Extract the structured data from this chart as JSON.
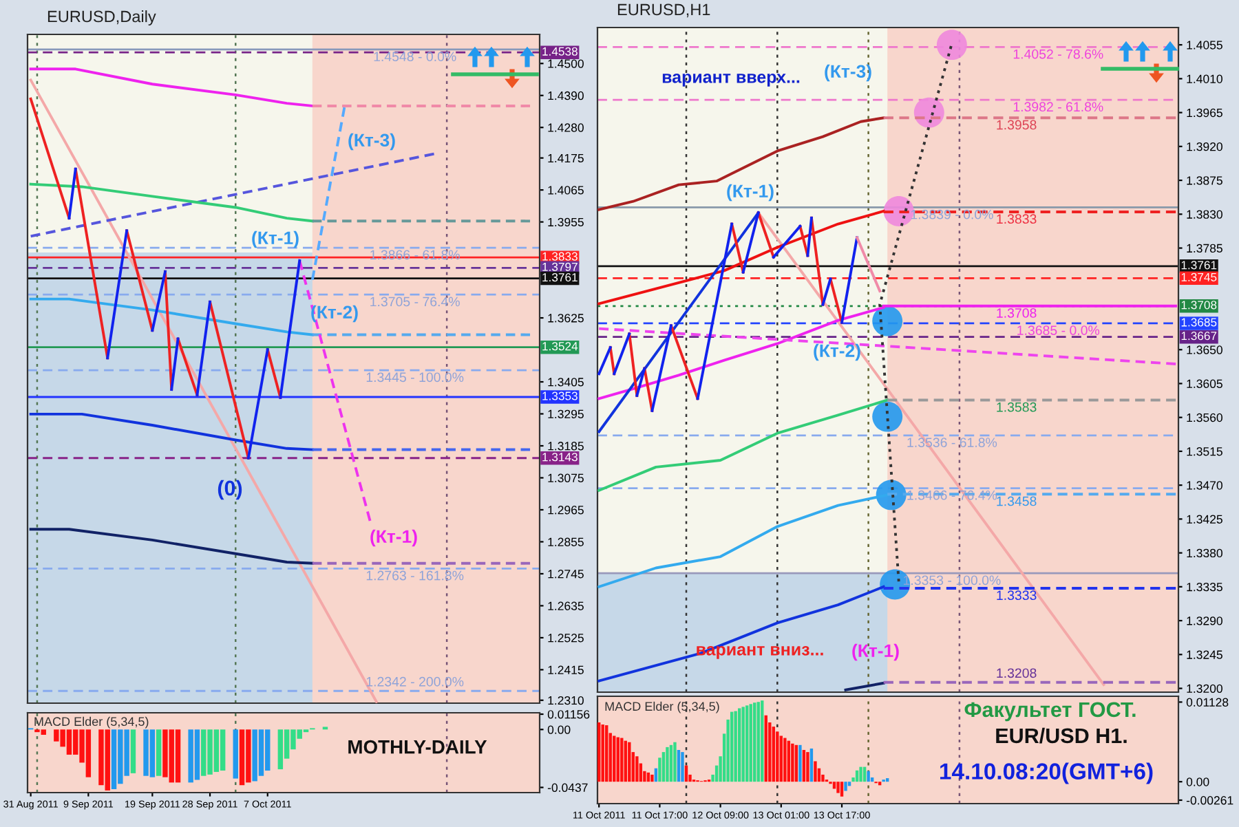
{
  "chart_data": [
    {
      "type": "line",
      "title": "EURUSD,Daily",
      "xlim": [
        "2011-08-30T12:00",
        "2011-11-18T12:00"
      ],
      "ylim": [
        1.23,
        1.46
      ],
      "tick_labels": "y",
      "yticks": [
        {
          "value": 1.45,
          "label": "1.4500"
        },
        {
          "value": 1.439,
          "label": "1.4390"
        },
        {
          "value": 1.428,
          "label": "1.4280"
        },
        1.4175,
        1.4065,
        1.3955,
        1.3625,
        1.3405,
        1.3295,
        1.3185,
        1.3075,
        1.2965,
        1.2855,
        1.2745,
        1.2635,
        1.2525,
        1.2415,
        {
          "value": 1.231,
          "label": "1.2310"
        }
      ],
      "bands": [
        {
          "axis": "y",
          "from": 1.23,
          "to": 1.385,
          "color": "#c6d8e8"
        },
        {
          "axis": "x",
          "from": "2011-10-14",
          "to": "2011-11-18T12:00",
          "color": "#f8d6cc"
        }
      ],
      "ref_lines": [
        {
          "axis": "x",
          "value": "2011-09-01",
          "color": "#557755",
          "line_style": "dotted"
        },
        {
          "axis": "x",
          "value": "2011-10-02",
          "color": "#557755",
          "line_style": "dotted"
        },
        {
          "axis": "x",
          "value": "2011-11-04",
          "color": "#775577",
          "line_style": "dotted"
        },
        {
          "axis": "y",
          "value": 1.4548,
          "color": "#8899bb",
          "line_style": "solid"
        },
        {
          "axis": "y",
          "value": 1.3866,
          "color": "#88aaee",
          "line_style": "dashed"
        },
        {
          "axis": "y",
          "value": 1.3705,
          "color": "#88aaee",
          "line_style": "dashed"
        },
        {
          "axis": "y",
          "value": 1.3445,
          "color": "#88aaee",
          "line_style": "dashed"
        },
        {
          "axis": "y",
          "value": 1.2763,
          "color": "#88aaee",
          "line_style": "dashed"
        },
        {
          "axis": "y",
          "value": 1.2342,
          "color": "#88aaee",
          "line_style": "dashed"
        },
        {
          "axis": "y",
          "value": 1.4538,
          "label": "1.4538",
          "color": "#772288",
          "line_style": "dashed"
        },
        {
          "axis": "y",
          "value": 1.3833,
          "label": "1.3833",
          "color": "#ff2222",
          "line_style": "solid"
        },
        {
          "axis": "y",
          "value": 1.3797,
          "label": "1.3797",
          "color": "#663399",
          "line_style": "dashed"
        },
        {
          "axis": "y",
          "value": 1.3761,
          "label": "1.3761",
          "color": "#111111",
          "line_style": "solid"
        },
        {
          "axis": "y",
          "value": 1.3524,
          "label": "1.3524",
          "color": "#229955",
          "line_style": "solid"
        },
        {
          "axis": "y",
          "value": 1.3353,
          "label": "1.3353",
          "color": "#2233ff",
          "line_style": "solid"
        },
        {
          "axis": "y",
          "value": 1.3143,
          "label": "1.3143",
          "color": "#882288",
          "line_style": "dashed"
        }
      ],
      "series": [
        {
          "type": "line",
          "color": "#f4a8a8",
          "x": [
            "2011-08-31",
            "2011-10-24"
          ],
          "values": [
            1.4443,
            1.2305
          ]
        },
        {
          "type": "line",
          "color": "#5555dd",
          "line_style": "dashed",
          "x": [
            "2011-08-31",
            "2011-11-02"
          ],
          "values": [
            1.3906,
            1.4189
          ]
        },
        {
          "type": "line",
          "color": "#ee22ee",
          "x": [
            "2011-08-31",
            "2011-09-07",
            "2011-09-19",
            "2011-10-02",
            "2011-10-10",
            "2011-10-14"
          ],
          "values": [
            1.4481,
            1.4481,
            1.4429,
            1.4392,
            1.4363,
            1.4354
          ]
        },
        {
          "type": "line",
          "color": "#f08aa8",
          "line_style": "dashed",
          "x": [
            "2011-10-14",
            "2011-11-17"
          ],
          "values": [
            1.4354,
            1.4354
          ]
        },
        {
          "type": "line",
          "color": "#33cc77",
          "x": [
            "2011-08-31",
            "2011-09-08",
            "2011-09-19",
            "2011-10-02",
            "2011-10-10",
            "2011-10-14"
          ],
          "values": [
            1.4085,
            1.4076,
            1.4043,
            1.4005,
            1.3968,
            1.3958
          ]
        },
        {
          "type": "line",
          "color": "#669999",
          "line_style": "dashed",
          "x": [
            "2011-10-14",
            "2011-11-17"
          ],
          "values": [
            1.3958,
            1.3958
          ]
        },
        {
          "type": "line",
          "color": "#33aaee",
          "x": [
            "2011-08-31",
            "2011-09-06",
            "2011-09-19",
            "2011-10-02",
            "2011-10-10",
            "2011-10-14"
          ],
          "values": [
            1.369,
            1.369,
            1.3652,
            1.3605,
            1.3577,
            1.3567
          ]
        },
        {
          "type": "line",
          "color": "#55aaee",
          "line_style": "dashed",
          "x": [
            "2011-10-14",
            "2011-11-17"
          ],
          "values": [
            1.3567,
            1.3567
          ]
        },
        {
          "type": "line",
          "color": "#1133dd",
          "x": [
            "2011-08-31",
            "2011-09-08",
            "2011-09-19",
            "2011-10-02",
            "2011-10-10",
            "2011-10-14"
          ],
          "values": [
            1.3294,
            1.3294,
            1.3256,
            1.3205,
            1.3176,
            1.3172
          ]
        },
        {
          "type": "line",
          "color": "#4466ee",
          "line_style": "dashed",
          "x": [
            "2011-10-14",
            "2011-11-17"
          ],
          "values": [
            1.3172,
            1.3172
          ]
        },
        {
          "type": "line",
          "color": "#112266",
          "x": [
            "2011-08-31",
            "2011-09-06",
            "2011-09-19",
            "2011-10-02",
            "2011-10-10",
            "2011-10-14"
          ],
          "values": [
            1.2898,
            1.2898,
            1.2861,
            1.2814,
            1.2785,
            1.2781
          ]
        },
        {
          "type": "line",
          "color": "#9966bb",
          "line_style": "dashed",
          "x": [
            "2011-10-14",
            "2011-11-17"
          ],
          "values": [
            1.2781,
            1.2781
          ]
        },
        {
          "type": "line",
          "color": "#55aaff",
          "line_style": "dashed",
          "x": [
            "2011-10-14",
            "2011-10-19"
          ],
          "values": [
            1.3756,
            1.4349
          ]
        },
        {
          "type": "line",
          "color": "#ee33ee",
          "line_style": "dashed",
          "x": [
            "2011-10-12",
            "2011-10-23"
          ],
          "values": [
            1.3822,
            1.2927
          ]
        },
        {
          "type": "line",
          "color": "#ee2222",
          "x": [
            "2011-08-31",
            "2011-09-06",
            null,
            "2011-09-07",
            "2011-09-12",
            null,
            "2011-09-15",
            "2011-09-19",
            null,
            "2011-09-21",
            "2011-09-22",
            null,
            "2011-09-23",
            "2011-09-26",
            null,
            "2011-09-28",
            "2011-10-04",
            null,
            "2011-10-07",
            "2011-10-09"
          ],
          "values": [
            1.4378,
            1.3968,
            null,
            1.4137,
            1.3487,
            null,
            1.3925,
            1.3582,
            null,
            1.3784,
            1.3379,
            null,
            1.3553,
            1.336,
            null,
            1.368,
            1.3143,
            null,
            1.3516,
            1.3351
          ]
        },
        {
          "type": "line",
          "color": "#1122ee",
          "x": [
            "2011-09-06",
            "2011-09-07",
            null,
            "2011-09-12",
            "2011-09-15",
            null,
            "2011-09-19",
            "2011-09-21",
            null,
            "2011-09-22",
            "2011-09-23",
            null,
            "2011-09-26",
            "2011-09-28",
            null,
            "2011-10-04",
            "2011-10-07",
            null,
            "2011-10-09",
            "2011-10-12"
          ],
          "values": [
            1.3968,
            1.4137,
            null,
            1.3487,
            1.3925,
            null,
            1.3582,
            1.3784,
            null,
            1.3379,
            1.3553,
            null,
            1.336,
            1.368,
            null,
            1.3143,
            1.3516,
            null,
            1.3351,
            1.3822
          ]
        }
      ],
      "annotations": [
        "(Кт-3)",
        "(Кт-1)",
        "(Кт-2)",
        "(0)",
        "(Кт-1)",
        {
          "text": "1.4548 - 0.0%",
          "x": "2011-10-30",
          "y": 1.4548
        },
        {
          "text": "1.3866 - 61.8%",
          "x": "2011-10-30",
          "y": 1.3866
        },
        {
          "text": "1.3705 - 76.4%",
          "x": "2011-10-30",
          "y": 1.3705
        },
        {
          "text": "1.3445 - 100.0%",
          "x": "2011-10-30",
          "y": 1.3445
        },
        {
          "text": "1.2763 - 161.8%",
          "x": "2011-10-30",
          "y": 1.2763
        },
        {
          "text": "1.2342 - 200.0%",
          "x": "2011-10-30",
          "y": 1.2342
        }
      ]
    },
    {
      "type": "bar",
      "title": "MACD Elder (5,34,5)",
      "xlim": [
        "2011-08-30T12:00",
        "2011-11-18T12:00"
      ],
      "ylim": [
        -0.0476,
        0.0126
      ],
      "yticks": [
        0.01156,
        {
          "value": 0,
          "label": "0.00"
        },
        -0.0437
      ],
      "xticks": [
        {
          "value": "2011-08-31",
          "label": "31 Aug 2011"
        },
        {
          "value": "2011-09-09",
          "label": "9 Sep 2011"
        },
        {
          "value": "2011-09-19",
          "label": "19 Sep 2011"
        },
        {
          "value": "2011-09-28",
          "label": "28 Sep 2011"
        },
        {
          "value": "2011-10-07",
          "label": "7 Oct 2011"
        }
      ],
      "ref_lines": [
        {
          "axis": "x",
          "value": "2011-09-01",
          "color": "#557755",
          "line_style": "dotted"
        },
        {
          "axis": "x",
          "value": "2011-10-02",
          "color": "#557755",
          "line_style": "dotted"
        },
        {
          "axis": "x",
          "value": "2011-11-04",
          "color": "#775577",
          "line_style": "dotted"
        }
      ],
      "x": [
        "2011-08-31",
        "2011-09-01",
        "2011-09-02",
        "2011-09-04",
        "2011-09-05",
        "2011-09-06",
        "2011-09-07",
        "2011-09-08",
        "2011-09-09",
        "2011-09-11",
        "2011-09-12",
        "2011-09-13",
        "2011-09-14",
        "2011-09-15",
        "2011-09-16",
        "2011-09-18",
        "2011-09-19",
        "2011-09-20",
        "2011-09-21",
        "2011-09-22",
        "2011-09-23",
        "2011-09-25",
        "2011-09-26",
        "2011-09-27",
        "2011-09-28",
        "2011-09-29",
        "2011-09-30",
        "2011-10-02",
        "2011-10-03",
        "2011-10-04",
        "2011-10-05",
        "2011-10-06",
        "2011-10-07",
        "2011-10-09",
        "2011-10-10",
        "2011-10-11",
        "2011-10-12",
        "2011-10-13",
        "2011-10-14",
        "2011-10-16"
      ],
      "values": [
        0.001,
        -0.002,
        -0.004,
        -0.009,
        -0.013,
        -0.019,
        -0.019,
        -0.025,
        -0.036,
        -0.042,
        -0.046,
        -0.045,
        -0.041,
        -0.035,
        -0.033,
        -0.035,
        -0.036,
        -0.035,
        -0.036,
        -0.04,
        -0.04,
        -0.04,
        -0.038,
        -0.035,
        -0.034,
        -0.032,
        -0.031,
        -0.037,
        -0.042,
        -0.04,
        -0.039,
        -0.035,
        -0.031,
        -0.03,
        -0.022,
        -0.015,
        -0.007,
        -0.002,
        0.001,
        0.002
      ],
      "colors": [
        "#2299ee",
        "#ff1111",
        "#ff1111",
        "#ff1111",
        "#ff1111",
        "#ff1111",
        "#ff1111",
        "#ff1111",
        "#ff1111",
        "#ff1111",
        "#ff1111",
        "#2299ee",
        "#2299ee",
        "#2299ee",
        "#33dd88",
        "#2299ee",
        "#2299ee",
        "#33dd88",
        "#ff1111",
        "#ff1111",
        "#ff1111",
        "#2299ee",
        "#2299ee",
        "#33dd88",
        "#33dd88",
        "#33dd88",
        "#33dd88",
        "#2299ee",
        "#ff1111",
        "#ff1111",
        "#2299ee",
        "#2299ee",
        "#2299ee",
        "#33dd88",
        "#33dd88",
        "#33dd88",
        "#33dd88",
        "#33dd88",
        "#33dd88",
        "#33dd88"
      ],
      "annotations": [
        "MOTHLY-DAILY"
      ]
    },
    {
      "type": "line",
      "title": "EURUSD,H1",
      "xlim": [
        "2011-10-11T00:36",
        "2011-10-17T09:42"
      ],
      "ylim": [
        1.3195,
        1.4078
      ],
      "tick_labels": "y",
      "yticks": [
        1.4055,
        {
          "value": 1.401,
          "label": "1.4010"
        },
        1.3965,
        {
          "value": 1.392,
          "label": "1.3920"
        },
        1.3875,
        {
          "value": 1.383,
          "label": "1.3830"
        },
        1.3785,
        {
          "value": 1.365,
          "label": "1.3650"
        },
        1.3605,
        {
          "value": 1.356,
          "label": "1.3560"
        },
        1.3515,
        {
          "value": 1.347,
          "label": "1.3470"
        },
        1.3425,
        {
          "value": 1.338,
          "label": "1.3380"
        },
        1.3335,
        {
          "value": 1.329,
          "label": "1.3290"
        },
        1.3245,
        {
          "value": 1.32,
          "label": "1.3200"
        }
      ],
      "bands": [
        {
          "axis": "y",
          "from": 1.3195,
          "to": 1.3353,
          "color": "#c6d8e8"
        },
        {
          "axis": "x",
          "from": "2011-10-14T05:00",
          "to": "2011-10-17T09:42",
          "color": "#f8d6cc"
        }
      ],
      "ref_lines": [
        {
          "axis": "x",
          "value": "2011-10-12T00:00",
          "color": "#333333",
          "line_style": "dotted"
        },
        {
          "axis": "x",
          "value": "2011-10-13T00:00",
          "color": "#333333",
          "line_style": "dotted"
        },
        {
          "axis": "x",
          "value": "2011-10-14T00:00",
          "color": "#666633",
          "line_style": "dotted"
        },
        {
          "axis": "x",
          "value": "2011-10-15T00:00",
          "color": "#775577",
          "line_style": "dotted"
        },
        {
          "axis": "y",
          "value": 1.4052,
          "color": "#ee77cc",
          "line_style": "dashed"
        },
        {
          "axis": "y",
          "value": 1.3982,
          "color": "#ee77cc",
          "line_style": "dashed"
        },
        {
          "axis": "y",
          "value": 1.3839,
          "color": "#8899aa",
          "line_style": "solid"
        },
        {
          "axis": "y",
          "value": 1.3536,
          "color": "#88aaee",
          "line_style": "dashed"
        },
        {
          "axis": "y",
          "value": 1.3466,
          "color": "#88aaee",
          "line_style": "dashed"
        },
        {
          "axis": "y",
          "value": 1.3353,
          "color": "#9999bb",
          "line_style": "solid"
        },
        {
          "axis": "y",
          "value": 1.3761,
          "label": "1.3761",
          "color": "#111111",
          "line_style": "solid"
        },
        {
          "axis": "y",
          "value": 1.3745,
          "label": "1.3745",
          "color": "#ff2222",
          "line_style": "dashed"
        },
        {
          "axis": "y",
          "value": 1.3708,
          "label": "1.3708",
          "color": "#228844",
          "line_style": "dotted"
        },
        {
          "axis": "y",
          "value": 1.3685,
          "label": "1.3685",
          "color": "#2244ff",
          "line_style": "dashed"
        },
        {
          "axis": "y",
          "value": 1.3667,
          "label": "1.3667",
          "color": "#662288",
          "line_style": "dashed"
        }
      ],
      "series": [
        {
          "type": "line",
          "color": "#f4a8a8",
          "x": [
            "2011-10-12T19:00",
            "2011-10-16T14:00"
          ],
          "values": [
            1.3832,
            1.3205
          ]
        },
        {
          "type": "line",
          "color": "#aa2222",
          "x": [
            "2011-10-11T01:00",
            "2011-10-11T10:00",
            "2011-10-11T22:00",
            "2011-10-12T08:00",
            "2011-10-13T00:00",
            "2011-10-13T12:00",
            "2011-10-13T22:00",
            "2011-10-14T04:00"
          ],
          "values": [
            1.3836,
            1.3847,
            1.3869,
            1.3874,
            1.3914,
            1.3933,
            1.3953,
            1.3958
          ]
        },
        {
          "type": "line",
          "color": "#dd7788",
          "line_style": "dashed",
          "x": [
            "2011-10-14T04:00",
            "2011-10-17T09:00"
          ],
          "values": [
            1.3958,
            1.3958
          ]
        },
        {
          "type": "line",
          "color": "#ee1111",
          "x": [
            "2011-10-11T01:00",
            "2011-10-11T16:00",
            "2011-10-12T10:00",
            "2011-10-13T00:00",
            "2011-10-13T16:00",
            "2011-10-14T04:00"
          ],
          "values": [
            1.3711,
            1.3731,
            1.3755,
            1.3786,
            1.3817,
            1.3834
          ]
        },
        {
          "type": "line",
          "color": "#ee2222",
          "line_style": "dashed",
          "x": [
            "2011-10-14T04:00",
            "2011-10-17T09:00"
          ],
          "values": [
            1.3833,
            1.3833
          ]
        },
        {
          "type": "line",
          "color": "#ee22ee",
          "x": [
            "2011-10-11T01:00",
            "2011-10-11T10:00",
            "2011-10-11T22:00",
            "2011-10-12T10:00",
            "2011-10-13T00:00",
            "2011-10-13T16:00",
            "2011-10-14T04:00"
          ],
          "values": [
            1.3585,
            1.3598,
            1.3616,
            1.3636,
            1.3658,
            1.3689,
            1.3706
          ]
        },
        {
          "type": "line",
          "color": "#ee22ee",
          "x": [
            "2011-10-14T04:00",
            "2011-10-17T09:00"
          ],
          "values": [
            1.3708,
            1.3708
          ]
        },
        {
          "type": "line",
          "color": "#ee44ee",
          "line_style": "dashed",
          "x": [
            "2011-10-11T01:00",
            "2011-10-14T04:00",
            "2011-10-17T09:00"
          ],
          "values": [
            1.3678,
            1.3655,
            1.3631
          ]
        },
        {
          "type": "line",
          "color": "#33cc77",
          "x": [
            "2011-10-11T01:00",
            "2011-10-11T16:00",
            "2011-10-12T09:00",
            "2011-10-13T00:00",
            "2011-10-13T16:00",
            "2011-10-14T05:00"
          ],
          "values": [
            1.3463,
            1.3494,
            1.3503,
            1.3539,
            1.3563,
            1.3583
          ]
        },
        {
          "type": "line",
          "color": "#999999",
          "line_style": "dashed",
          "x": [
            "2011-10-14T05:00",
            "2011-10-17T09:00"
          ],
          "values": [
            1.3583,
            1.3583
          ]
        },
        {
          "type": "line",
          "color": "#33aaee",
          "x": [
            "2011-10-11T01:00",
            "2011-10-11T16:00",
            "2011-10-12T09:00",
            "2011-10-13T00:00",
            "2011-10-13T16:00",
            "2011-10-14T05:00"
          ],
          "values": [
            1.3335,
            1.336,
            1.3375,
            1.3415,
            1.3443,
            1.3457
          ]
        },
        {
          "type": "line",
          "color": "#55aaee",
          "line_style": "dashed",
          "x": [
            "2011-10-14T05:00",
            "2011-10-17T09:00"
          ],
          "values": [
            1.3458,
            1.3458
          ]
        },
        {
          "type": "line",
          "color": "#1133dd",
          "x": [
            "2011-10-11T01:00",
            "2011-10-12T04:00",
            "2011-10-13T00:00",
            "2011-10-13T16:00",
            "2011-10-14T04:00"
          ],
          "values": [
            1.321,
            1.3247,
            1.3287,
            1.3311,
            1.3335
          ]
        },
        {
          "type": "line",
          "color": "#2233ee",
          "line_style": "dashed",
          "x": [
            "2011-10-14T04:00",
            "2011-10-17T09:00"
          ],
          "values": [
            1.3333,
            1.3333
          ]
        },
        {
          "type": "line",
          "color": "#112266",
          "x": [
            "2011-10-13T18:00",
            "2011-10-14T04:00"
          ],
          "values": [
            1.3198,
            1.3207
          ]
        },
        {
          "type": "line",
          "color": "#9966bb",
          "line_style": "dashed",
          "x": [
            "2011-10-14T04:00",
            "2011-10-17T09:00"
          ],
          "values": [
            1.3208,
            1.3208
          ]
        },
        {
          "type": "line",
          "color": "#1133dd",
          "x": [
            "2011-10-11T01:00",
            "2011-10-12T19:00"
          ],
          "values": [
            1.3541,
            1.3832
          ]
        },
        {
          "type": "line",
          "color": "#ee2222",
          "x": [
            "2011-10-11T04:00",
            "2011-10-11T05:00",
            null,
            "2011-10-11T09:00",
            "2011-10-11T11:00",
            null,
            "2011-10-11T13:00",
            "2011-10-11T15:00",
            null,
            "2011-10-11T20:00",
            "2011-10-12T03:00",
            null,
            "2011-10-12T12:00",
            "2011-10-12T15:00",
            null,
            "2011-10-12T19:00",
            "2011-10-12T23:00",
            null,
            "2011-10-13T06:00",
            "2011-10-13T08:00",
            null,
            "2011-10-13T09:00",
            "2011-10-13T12:00",
            null,
            "2011-10-13T14:00",
            "2011-10-13T17:00"
          ],
          "values": [
            1.3653,
            1.3618,
            null,
            1.3671,
            1.3589,
            null,
            1.3625,
            1.3569,
            null,
            1.3682,
            1.3585,
            null,
            1.3817,
            1.3753,
            null,
            1.3832,
            1.3773,
            null,
            1.3814,
            1.3775,
            null,
            1.3825,
            1.371,
            null,
            1.3744,
            1.3686
          ]
        },
        {
          "type": "line",
          "color": "#1122ee",
          "x": [
            "2011-10-11T01:00",
            "2011-10-11T04:00",
            null,
            "2011-10-11T05:00",
            "2011-10-11T09:00",
            null,
            "2011-10-11T11:00",
            "2011-10-11T13:00",
            null,
            "2011-10-11T15:00",
            "2011-10-11T20:00",
            null,
            "2011-10-12T03:00",
            "2011-10-12T12:00",
            null,
            "2011-10-12T15:00",
            "2011-10-12T19:00",
            null,
            "2011-10-12T23:00",
            "2011-10-13T06:00",
            null,
            "2011-10-13T08:00",
            "2011-10-13T09:00",
            null,
            "2011-10-13T12:00",
            "2011-10-13T14:00",
            null,
            "2011-10-13T17:00",
            "2011-10-13T21:00"
          ],
          "values": [
            1.3618,
            1.3653,
            null,
            1.3618,
            1.3671,
            null,
            1.3589,
            1.3625,
            null,
            1.3569,
            1.3682,
            null,
            1.3585,
            1.3817,
            null,
            1.3753,
            1.3832,
            null,
            1.3773,
            1.3814,
            null,
            1.3775,
            1.3825,
            null,
            1.371,
            1.3744,
            null,
            1.3686,
            1.3799
          ]
        },
        {
          "type": "line",
          "color": "#f08aa8",
          "x": [
            "2011-10-13T21:00",
            "2011-10-14T03:00"
          ],
          "values": [
            1.3799,
            1.3728
          ]
        },
        {
          "type": "line",
          "color": "#333333",
          "line_style": "dotted",
          "x": [
            "2011-10-14T08:00",
            "2011-10-14T03:00",
            "2011-10-14T22:00"
          ],
          "values": [
            1.3342,
            1.371,
            1.4057
          ]
        },
        {
          "type": "scatter",
          "color": "#ee88dd",
          "marker": "circle",
          "x": [
            "2011-10-14T08:00",
            "2011-10-14T16:00",
            "2011-10-14T22:00"
          ],
          "values": [
            1.3834,
            1.3965,
            1.4055
          ]
        },
        {
          "type": "scatter",
          "color": "#2299ee",
          "marker": "circle",
          "x": [
            "2011-10-14T05:00",
            "2011-10-14T05:00",
            "2011-10-14T06:00",
            "2011-10-14T07:00"
          ],
          "values": [
            1.3688,
            1.3561,
            1.3457,
            1.3338
          ]
        }
      ],
      "annotations": [
        "вариант вверх...",
        "(Кт-3)",
        "(Кт-1)",
        "(Кт-2)",
        "вариант вниз...",
        "(Кт-1)",
        {
          "text": "1.4052 - 78.6%",
          "x": "2011-10-16T02:00",
          "y": 1.4052
        },
        {
          "text": "1.3982 - 61.8%",
          "x": "2011-10-16T02:00",
          "y": 1.3982
        },
        {
          "text": "1.3839 - 0.0%",
          "x": "2011-10-14T22:00",
          "y": 1.3839
        },
        {
          "text": "1.3685 - 0.0%",
          "x": "2011-10-16T02:00",
          "y": 1.3685
        },
        {
          "text": "1.3536 - 61.8%",
          "x": "2011-10-14T22:00",
          "y": 1.3536
        },
        {
          "text": "1.3466 - 76.4%",
          "x": "2011-10-14T22:00",
          "y": 1.3466
        },
        {
          "text": "1.3353 - 100.0%",
          "x": "2011-10-14T22:00",
          "y": 1.3353
        },
        {
          "text": "1.3958",
          "x": "2011-10-15T15:00",
          "y": 1.3958
        },
        {
          "text": "1.3833",
          "x": "2011-10-15T15:00",
          "y": 1.3833
        },
        {
          "text": "1.3708",
          "x": "2011-10-15T15:00",
          "y": 1.3708
        },
        {
          "text": "1.3583",
          "x": "2011-10-15T15:00",
          "y": 1.3583
        },
        {
          "text": "1.3458",
          "x": "2011-10-15T15:00",
          "y": 1.3458
        },
        {
          "text": "1.3333",
          "x": "2011-10-15T15:00",
          "y": 1.3333
        },
        {
          "text": "1.3208",
          "x": "2011-10-15T15:00",
          "y": 1.3208
        }
      ]
    },
    {
      "type": "bar",
      "title": "MACD Elder (5,34,5)",
      "xlim": [
        "2011-10-11T00:36",
        "2011-10-17T09:42"
      ],
      "ylim": [
        -0.0031,
        0.0121
      ],
      "yticks": [
        0.01128,
        {
          "value": 0,
          "label": "0.00"
        },
        -0.00261
      ],
      "xticks": [
        {
          "value": "2011-10-11T01:00",
          "label": "11 Oct 2011"
        },
        {
          "value": "2011-10-11T17:00",
          "label": "11 Oct 17:00"
        },
        {
          "value": "2011-10-12T09:00",
          "label": "12 Oct 09:00"
        },
        {
          "value": "2011-10-13T01:00",
          "label": "13 Oct 01:00"
        },
        {
          "value": "2011-10-13T17:00",
          "label": "13 Oct 17:00"
        }
      ],
      "ref_lines": [
        {
          "axis": "x",
          "value": "2011-10-12T00:00",
          "color": "#333333",
          "line_style": "dotted"
        },
        {
          "axis": "x",
          "value": "2011-10-13T00:00",
          "color": "#333333",
          "line_style": "dotted"
        },
        {
          "axis": "x",
          "value": "2011-10-14T00:00",
          "color": "#666633",
          "line_style": "dotted"
        },
        {
          "axis": "x",
          "value": "2011-10-15T00:00",
          "color": "#775577",
          "line_style": "dotted"
        }
      ],
      "x": [
        "2011-10-11T01:00",
        "2011-10-11T02:00",
        "2011-10-11T03:00",
        "2011-10-11T04:00",
        "2011-10-11T05:00",
        "2011-10-11T06:00",
        "2011-10-11T07:00",
        "2011-10-11T08:00",
        "2011-10-11T09:00",
        "2011-10-11T10:00",
        "2011-10-11T11:00",
        "2011-10-11T12:00",
        "2011-10-11T13:00",
        "2011-10-11T14:00",
        "2011-10-11T15:00",
        "2011-10-11T16:00",
        "2011-10-11T17:00",
        "2011-10-11T18:00",
        "2011-10-11T19:00",
        "2011-10-11T20:00",
        "2011-10-11T21:00",
        "2011-10-11T22:00",
        "2011-10-11T23:00",
        "2011-10-12T00:00",
        "2011-10-12T01:00",
        "2011-10-12T02:00",
        "2011-10-12T03:00",
        "2011-10-12T04:00",
        "2011-10-12T05:00",
        "2011-10-12T06:00",
        "2011-10-12T07:00",
        "2011-10-12T08:00",
        "2011-10-12T09:00",
        "2011-10-12T10:00",
        "2011-10-12T11:00",
        "2011-10-12T12:00",
        "2011-10-12T13:00",
        "2011-10-12T14:00",
        "2011-10-12T15:00",
        "2011-10-12T16:00",
        "2011-10-12T17:00",
        "2011-10-12T18:00",
        "2011-10-12T19:00",
        "2011-10-12T20:00",
        "2011-10-12T21:00",
        "2011-10-12T22:00",
        "2011-10-12T23:00",
        "2011-10-13T00:00",
        "2011-10-13T01:00",
        "2011-10-13T02:00",
        "2011-10-13T03:00",
        "2011-10-13T04:00",
        "2011-10-13T05:00",
        "2011-10-13T06:00",
        "2011-10-13T07:00",
        "2011-10-13T08:00",
        "2011-10-13T09:00",
        "2011-10-13T10:00",
        "2011-10-13T11:00",
        "2011-10-13T12:00",
        "2011-10-13T13:00",
        "2011-10-13T14:00",
        "2011-10-13T15:00",
        "2011-10-13T16:00",
        "2011-10-13T17:00",
        "2011-10-13T18:00",
        "2011-10-13T19:00",
        "2011-10-13T20:00",
        "2011-10-13T21:00",
        "2011-10-13T22:00",
        "2011-10-13T23:00",
        "2011-10-14T00:00",
        "2011-10-14T01:00",
        "2011-10-14T02:00",
        "2011-10-14T03:00",
        "2011-10-14T04:00",
        "2011-10-14T05:00"
      ],
      "values": [
        0.0084,
        0.0081,
        0.008,
        0.0069,
        0.0065,
        0.0063,
        0.0062,
        0.0058,
        0.0056,
        0.0042,
        0.0036,
        0.0026,
        0.0015,
        0.0013,
        0.001,
        0.0019,
        0.0034,
        0.0042,
        0.0049,
        0.0052,
        0.0056,
        0.0045,
        0.0042,
        0.0023,
        0.001,
        0.0003,
        0.0002,
        0.0001,
        0.0002,
        0.0003,
        0.001,
        0.0023,
        0.0036,
        0.0068,
        0.0088,
        0.0099,
        0.01,
        0.0104,
        0.0106,
        0.0108,
        0.011,
        0.0112,
        0.0113,
        0.0115,
        0.0094,
        0.0084,
        0.0078,
        0.0071,
        0.0065,
        0.0062,
        0.0058,
        0.0054,
        0.0052,
        0.0052,
        0.0045,
        0.0042,
        0.0047,
        0.0029,
        0.0019,
        0.001,
        0.0003,
        -0.0003,
        -0.001,
        -0.0016,
        -0.0021,
        -0.0013,
        -0.0006,
        0.0006,
        0.0016,
        0.0021,
        0.0021,
        0.0015,
        0.0006,
        -0.0002,
        -0.0005,
        0.0003,
        0.0005
      ],
      "colors": [
        "#ff1111",
        "#ff1111",
        "#ff1111",
        "#ff1111",
        "#ff1111",
        "#ff1111",
        "#ff1111",
        "#ff1111",
        "#ff1111",
        "#ff1111",
        "#ff1111",
        "#ff1111",
        "#ff1111",
        "#ff1111",
        "#ff1111",
        "#2299ee",
        "#33dd88",
        "#33dd88",
        "#33dd88",
        "#33dd88",
        "#33dd88",
        "#2299ee",
        "#2299ee",
        "#ff1111",
        "#ff1111",
        "#ff1111",
        "#ff1111",
        "#ff1111",
        "#ff1111",
        "#ff1111",
        "#33dd88",
        "#33dd88",
        "#33dd88",
        "#33dd88",
        "#33dd88",
        "#33dd88",
        "#33dd88",
        "#33dd88",
        "#33dd88",
        "#33dd88",
        "#33dd88",
        "#33dd88",
        "#33dd88",
        "#33dd88",
        "#ff1111",
        "#ff1111",
        "#ff1111",
        "#ff1111",
        "#ff1111",
        "#ff1111",
        "#ff1111",
        "#ff1111",
        "#ff1111",
        "#2299ee",
        "#ff1111",
        "#ff1111",
        "#2299ee",
        "#ff1111",
        "#ff1111",
        "#ff1111",
        "#ff1111",
        "#ff1111",
        "#ff1111",
        "#ff1111",
        "#ff1111",
        "#2299ee",
        "#2299ee",
        "#33dd88",
        "#33dd88",
        "#33dd88",
        "#33dd88",
        "#2299ee",
        "#2299ee",
        "#ff1111",
        "#ff1111",
        "#2299ee",
        "#2299ee"
      ],
      "annotations": [
        "Факультет ГОСТ.",
        "EUR/USD H1.",
        "14.10.08:20(GMT+6)"
      ]
    }
  ]
}
